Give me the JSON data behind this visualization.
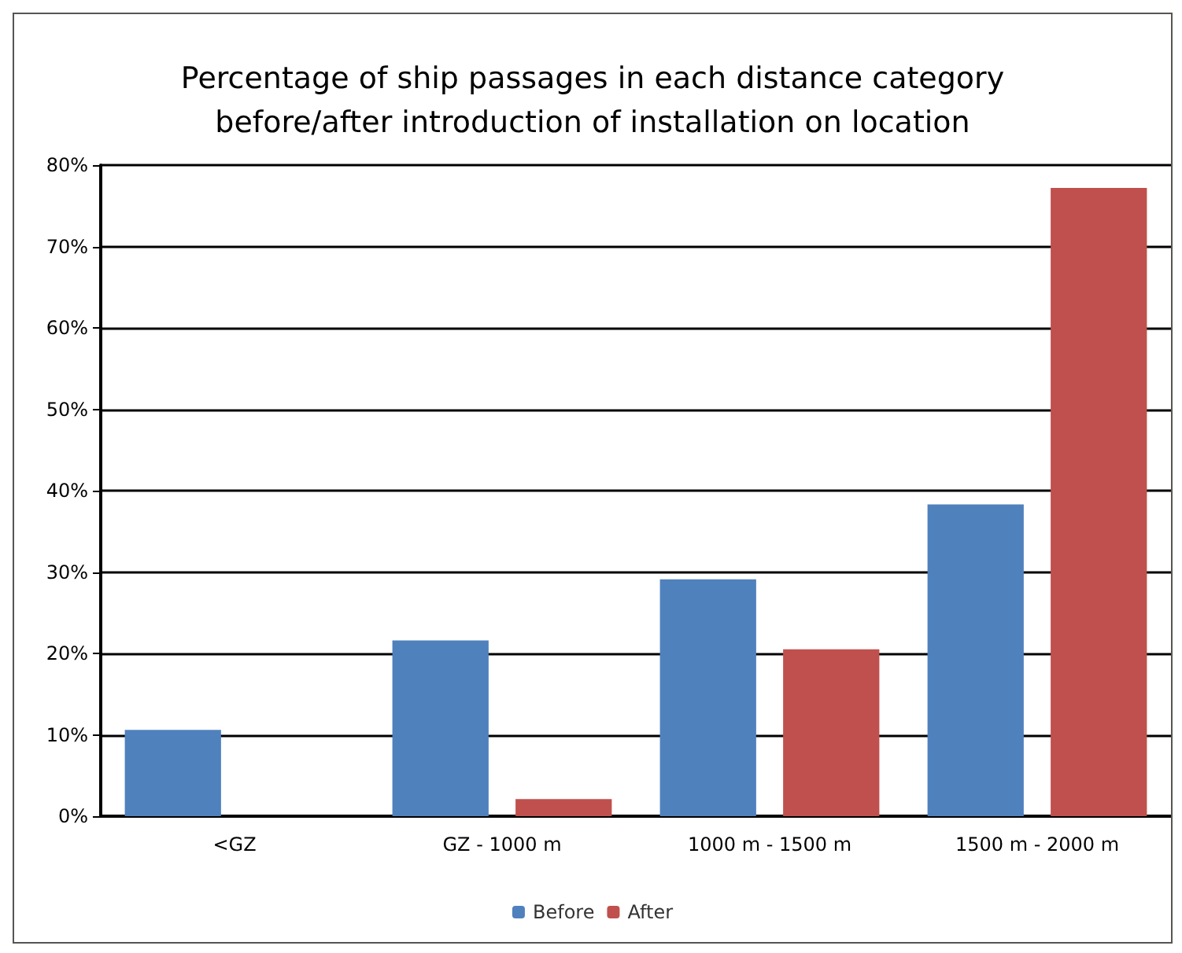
{
  "chart_data": {
    "type": "bar",
    "title": "Percentage of ship passages in each distance category\nbefore/after introduction of installation on location",
    "categories": [
      "<GZ",
      "GZ - 1000 m",
      "1000 m - 1500 m",
      "1500 m - 2000 m"
    ],
    "series": [
      {
        "name": "Before",
        "color": "#4f81bd",
        "values": [
          10.6,
          21.6,
          29.1,
          38.3
        ]
      },
      {
        "name": "After",
        "color": "#c0504d",
        "values": [
          0,
          2.1,
          20.5,
          77.2
        ]
      }
    ],
    "ylim": [
      0,
      80
    ],
    "yticks": [
      {
        "value": 0,
        "label": "0%"
      },
      {
        "value": 10,
        "label": "10%"
      },
      {
        "value": 20,
        "label": "20%"
      },
      {
        "value": 30,
        "label": "30%"
      },
      {
        "value": 40,
        "label": "40%"
      },
      {
        "value": 50,
        "label": "50%"
      },
      {
        "value": 60,
        "label": "60%"
      },
      {
        "value": 70,
        "label": "70%"
      },
      {
        "value": 80,
        "label": "80%"
      }
    ],
    "grid": "y",
    "legend": "bottom"
  }
}
